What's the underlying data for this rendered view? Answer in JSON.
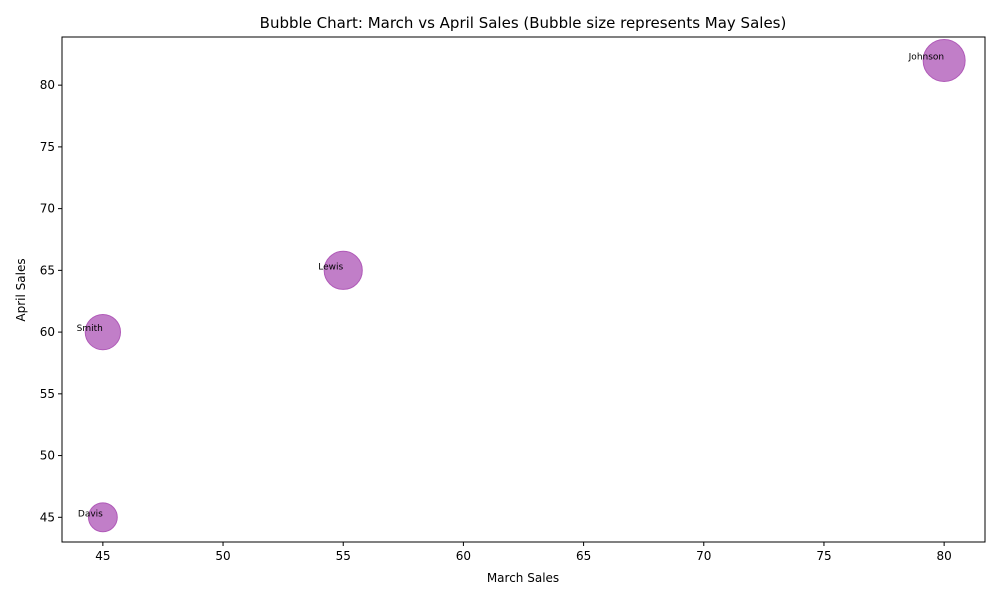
{
  "chart_data": {
    "type": "scatter",
    "title": "Bubble Chart: March vs April Sales (Bubble size represents May Sales)",
    "xlabel": "March Sales",
    "ylabel": "April Sales",
    "xlim": [
      43.3,
      81.7
    ],
    "ylim": [
      43.0,
      83.9
    ],
    "x_ticks": [
      45,
      50,
      55,
      60,
      65,
      70,
      75,
      80
    ],
    "y_ticks": [
      45,
      50,
      55,
      60,
      65,
      70,
      75,
      80
    ],
    "grid": false,
    "bubble_color": "#B05AB8",
    "points": [
      {
        "label": "Johnson",
        "x": 80,
        "y": 82,
        "size": 85
      },
      {
        "label": "Lewis",
        "x": 55,
        "y": 65,
        "size": 70
      },
      {
        "label": "Smith",
        "x": 45,
        "y": 60,
        "size": 60
      },
      {
        "label": "Davis",
        "x": 45,
        "y": 45,
        "size": 40
      }
    ]
  }
}
